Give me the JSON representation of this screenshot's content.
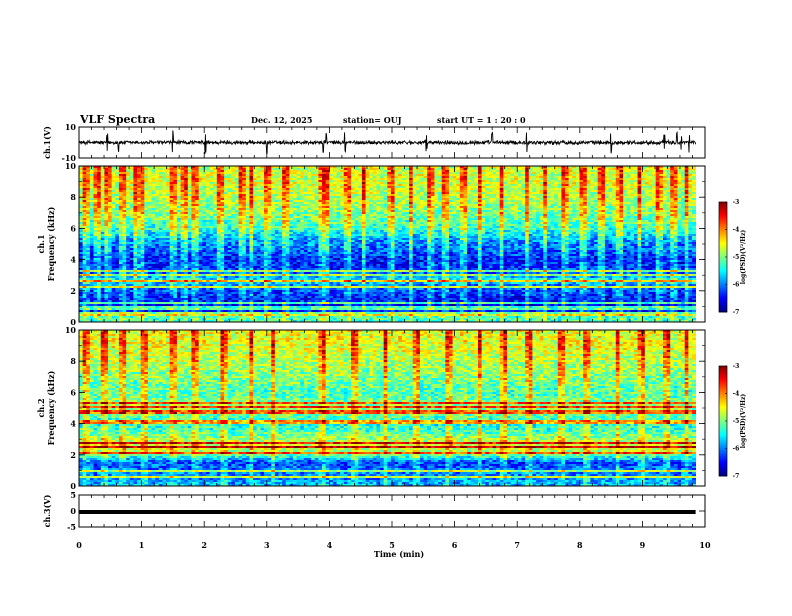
{
  "header": {
    "title": "VLF Spectra",
    "date": "Dec. 12, 2025",
    "station": "station= OUJ",
    "start": "start  UT =   1 : 20 : 0"
  },
  "chart_data": [
    {
      "type": "line",
      "name": "ch1-waveform",
      "ylabel": "ch.1(V)",
      "ylim": [
        -10,
        10
      ],
      "yticks": [
        "10",
        "-10"
      ],
      "x_range_min": [
        0,
        9.85
      ],
      "baseline_V": 0,
      "noise_amplitude_V": 1.5,
      "spikes_min": [
        0.45,
        0.63,
        1.5,
        2.02,
        3.0,
        3.9,
        3.95,
        4.25,
        5.55,
        6.6,
        7.15,
        8.5,
        9.35,
        9.55,
        9.62,
        9.75
      ]
    },
    {
      "type": "heatmap",
      "name": "ch1-spectrogram",
      "ylabel": "ch.1\nFrequency  (kHz)",
      "ylim": [
        0,
        10
      ],
      "yticks": [
        "0",
        "2",
        "4",
        "6",
        "8",
        "10"
      ],
      "x_range_min": [
        0,
        9.85
      ],
      "colorbar": {
        "label": "log(PSD)(V²/Hz)",
        "range": [
          -7,
          -3
        ],
        "ticks": [
          "-3",
          "-4",
          "-5",
          "-6",
          "-7"
        ]
      },
      "band_profile_kHz_to_logPSD": [
        [
          0,
          -5.4
        ],
        [
          0.3,
          -5.2
        ],
        [
          0.6,
          -6.4
        ],
        [
          1.0,
          -6.6
        ],
        [
          1.5,
          -6.5
        ],
        [
          2.0,
          -6.3
        ],
        [
          2.4,
          -6.0
        ],
        [
          2.7,
          -5.5
        ],
        [
          3.0,
          -6.2
        ],
        [
          3.5,
          -6.4
        ],
        [
          4.0,
          -6.5
        ],
        [
          4.6,
          -6.2
        ],
        [
          5.2,
          -6.0
        ],
        [
          6.0,
          -5.4
        ],
        [
          7.0,
          -5.1
        ],
        [
          8.0,
          -4.9
        ],
        [
          9.0,
          -4.8
        ],
        [
          10.0,
          -4.8
        ]
      ],
      "horizontal_lines_kHz": [
        0.5,
        0.9,
        1.2,
        2.25,
        2.6,
        3.0,
        3.3
      ],
      "sferic_bursts_min": [
        0.1,
        0.3,
        0.45,
        0.7,
        0.9,
        1.0,
        1.5,
        1.7,
        1.85,
        2.25,
        2.6,
        2.75,
        3.0,
        3.3,
        3.9,
        3.95,
        4.3,
        4.55,
        5.0,
        5.3,
        5.6,
        5.85,
        6.15,
        6.4,
        6.75,
        7.15,
        7.45,
        7.75,
        8.05,
        8.35,
        8.65,
        8.95,
        9.25,
        9.5,
        9.7
      ]
    },
    {
      "type": "heatmap",
      "name": "ch2-spectrogram",
      "ylabel": "ch.2\nFrequency  (kHz)",
      "ylim": [
        0,
        10
      ],
      "yticks": [
        "0",
        "2",
        "4",
        "6",
        "8",
        "10"
      ],
      "x_range_min": [
        0,
        9.85
      ],
      "colorbar": {
        "label": "log(PSD)(V²/Hz)",
        "range": [
          -7,
          -3
        ],
        "ticks": [
          "-3",
          "-4",
          "-5",
          "-6",
          "-7"
        ]
      },
      "band_profile_kHz_to_logPSD": [
        [
          0,
          -5.8
        ],
        [
          0.5,
          -6.0
        ],
        [
          1.0,
          -6.1
        ],
        [
          1.5,
          -6.3
        ],
        [
          2.0,
          -5.2
        ],
        [
          2.5,
          -4.6
        ],
        [
          3.0,
          -4.9
        ],
        [
          3.5,
          -5.3
        ],
        [
          4.0,
          -5.5
        ],
        [
          4.6,
          -5.2
        ],
        [
          5.0,
          -5.0
        ],
        [
          6.0,
          -5.3
        ],
        [
          7.0,
          -5.1
        ],
        [
          8.0,
          -4.9
        ],
        [
          9.0,
          -4.7
        ],
        [
          10.0,
          -4.7
        ]
      ],
      "horizontal_lines_kHz": [
        0.6,
        1.0,
        2.1,
        2.5,
        2.8,
        4.1,
        4.75,
        5.1,
        5.3
      ],
      "sferic_bursts_min": [
        0.1,
        0.4,
        0.7,
        1.05,
        1.5,
        1.85,
        2.3,
        2.75,
        3.1,
        3.9,
        4.4,
        4.9,
        5.4,
        5.9,
        6.4,
        6.8,
        7.2,
        7.7,
        8.1,
        8.6,
        9.0,
        9.4,
        9.7
      ]
    },
    {
      "type": "line",
      "name": "ch3-waveform",
      "ylabel": "ch.3(V)",
      "ylim": [
        -5,
        5
      ],
      "yticks": [
        "5",
        "0",
        "-5"
      ],
      "x_range_min": [
        0,
        9.85
      ],
      "baseline_V": -0.3
    }
  ],
  "xaxis": {
    "label": "Time  (min)",
    "range": [
      0,
      10
    ],
    "ticks": [
      "0",
      "1",
      "2",
      "3",
      "4",
      "5",
      "6",
      "7",
      "8",
      "9",
      "10"
    ]
  }
}
